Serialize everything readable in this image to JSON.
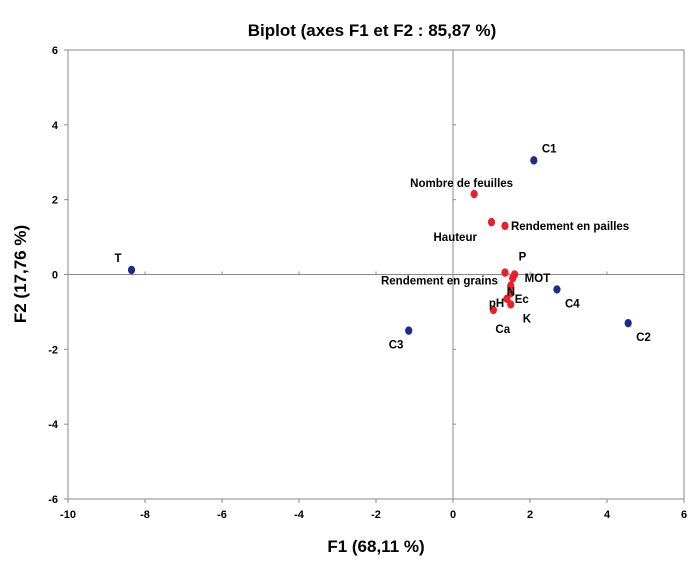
{
  "chart_data": {
    "type": "scatter",
    "title": "Biplot (axes F1 et F2 : 85,87 %)",
    "xlabel": "F1 (68,11 %)",
    "ylabel": "F2 (17,76 %)",
    "xlim": [
      -10,
      6
    ],
    "ylim": [
      -6,
      6
    ],
    "xticks": [
      -10,
      -8,
      -6,
      -4,
      -2,
      0,
      2,
      4,
      6
    ],
    "yticks": [
      -6,
      -4,
      -2,
      0,
      2,
      4,
      6
    ],
    "grid": false,
    "origin_lines": true,
    "series": [
      {
        "color": "#1f2a8a",
        "points": [
          {
            "label": "C1",
            "x": 2.1,
            "y": 3.05
          },
          {
            "label": "C2",
            "x": 4.55,
            "y": -1.3
          },
          {
            "label": "C3",
            "x": -1.15,
            "y": -1.5
          },
          {
            "label": "C4",
            "x": 2.7,
            "y": -0.4
          },
          {
            "label": "T",
            "x": -8.35,
            "y": 0.12
          }
        ]
      },
      {
        "color": "#e8202a",
        "points": [
          {
            "label": "Nombre de feuilles",
            "x": 0.55,
            "y": 2.15
          },
          {
            "label": "Hauteur",
            "x": 1.0,
            "y": 1.4
          },
          {
            "label": "Rendement en pailles",
            "x": 1.35,
            "y": 1.3
          },
          {
            "label": "Rendement en grains",
            "x": 1.35,
            "y": 0.05
          },
          {
            "label": "P",
            "x": 1.6,
            "y": 0.0
          },
          {
            "label": "MOT",
            "x": 1.55,
            "y": -0.1
          },
          {
            "label": "N",
            "x": 1.5,
            "y": -0.3
          },
          {
            "label": "Ec",
            "x": 1.5,
            "y": -0.5
          },
          {
            "label": "pH",
            "x": 1.4,
            "y": -0.65
          },
          {
            "label": "K",
            "x": 1.5,
            "y": -0.8
          },
          {
            "label": "Ca",
            "x": 1.05,
            "y": -0.95
          }
        ]
      }
    ]
  }
}
